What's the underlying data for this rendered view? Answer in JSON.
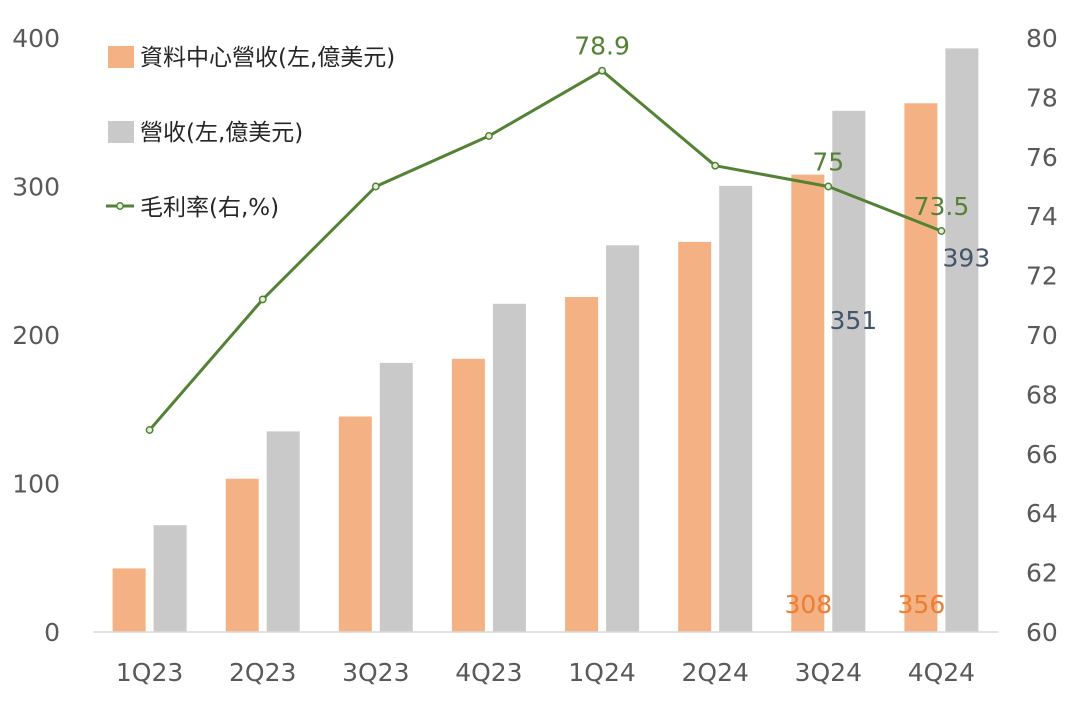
{
  "chart_data": {
    "type": "bar+line",
    "categories": [
      "1Q23",
      "2Q23",
      "3Q23",
      "4Q23",
      "1Q24",
      "2Q24",
      "3Q24",
      "4Q24"
    ],
    "series": [
      {
        "name": "資料中心營收(左,億美元)",
        "type": "bar",
        "axis": "left",
        "color": "#F4B183",
        "values": [
          42.8,
          103.2,
          145.1,
          184.0,
          225.6,
          262.7,
          308,
          356
        ],
        "labels": [
          "",
          "",
          "",
          "",
          "",
          "",
          "308",
          "356"
        ],
        "label_color": "#ED7D31"
      },
      {
        "name": "營收(左,億美元)",
        "type": "bar",
        "axis": "left",
        "color": "#C9C9C9",
        "values": [
          71.9,
          135.1,
          181.2,
          221.0,
          260.4,
          300.4,
          351,
          393
        ],
        "labels": [
          "",
          "",
          "",
          "",
          "",
          "",
          "351",
          "393"
        ],
        "label_color": "#44546A"
      },
      {
        "name": "毛利率(右,%)",
        "type": "line",
        "axis": "right",
        "color": "#548235",
        "values": [
          66.8,
          71.2,
          75.0,
          76.7,
          78.9,
          75.7,
          75.0,
          73.5
        ],
        "labels": [
          "",
          "",
          "",
          "",
          "78.9",
          "",
          "75",
          "73.5"
        ],
        "label_color": "#548235"
      }
    ],
    "y_left": {
      "min": 0,
      "max": 400,
      "ticks": [
        "0",
        "100",
        "200",
        "300",
        "400"
      ]
    },
    "y_right": {
      "min": 60,
      "max": 80,
      "ticks": [
        "60",
        "62",
        "64",
        "66",
        "68",
        "70",
        "72",
        "74",
        "76",
        "78",
        "80"
      ]
    },
    "legend_position": "top-left",
    "grid": false,
    "title": ""
  }
}
